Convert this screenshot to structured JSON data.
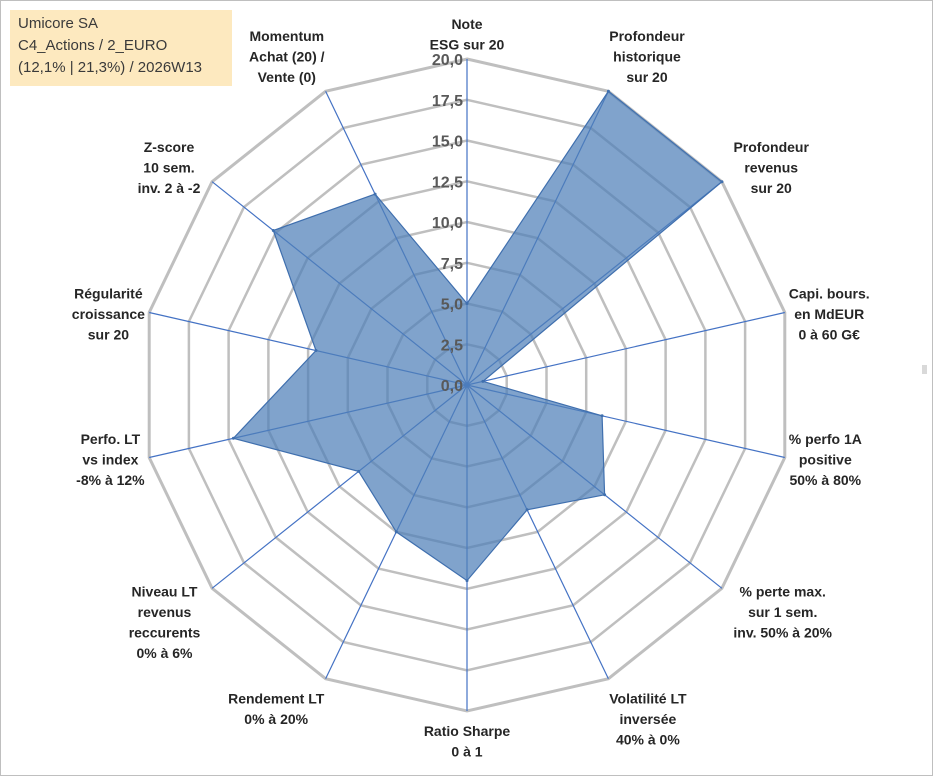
{
  "info_box": {
    "line1": "Umicore SA",
    "line2": "C4_Actions / 2_EURO",
    "line3": "(12,1% | 21,3%) / 2026W13"
  },
  "chart_data": {
    "type": "radar",
    "title": "",
    "rmin": 0,
    "rmax": 20,
    "tick_step": 2.5,
    "tick_labels": [
      "0,0",
      "2,5",
      "5,0",
      "7,5",
      "10,0",
      "12,5",
      "15,0",
      "17,5",
      "20,0"
    ],
    "axes": [
      [
        "Note",
        "ESG sur 20"
      ],
      [
        "Profondeur",
        "historique",
        "sur 20"
      ],
      [
        "Profondeur",
        "revenus",
        "sur 20"
      ],
      [
        "Capi. bours.",
        "en MdEUR",
        "0 à 60 G€"
      ],
      [
        "% perfo 1A",
        "positive",
        "50% à 80%"
      ],
      [
        "% perte max.",
        "sur 1 sem.",
        "inv. 50% à 20%"
      ],
      [
        "Volatilité LT",
        "inversée",
        "40% à 0%"
      ],
      [
        "Ratio Sharpe",
        "0 à 1"
      ],
      [
        "Rendement LT",
        "0% à 20%"
      ],
      [
        "Niveau LT",
        "revenus",
        "reccurents",
        "0% à 6%"
      ],
      [
        "Perfo. LT",
        "vs index",
        "-8% à 12%"
      ],
      [
        "Régularité",
        "croissance",
        "sur 20"
      ],
      [
        "Z-score",
        "10 sem.",
        "inv. 2 à -2"
      ],
      [
        "Momentum",
        "Achat (20) /",
        "Vente (0)"
      ]
    ],
    "series": [
      {
        "name": "Umicore SA",
        "values": [
          5.0,
          20.0,
          20.0,
          1.0,
          8.5,
          10.8,
          8.5,
          12.0,
          10.0,
          8.5,
          14.7,
          9.5,
          15.2,
          13.0
        ]
      }
    ],
    "colors": {
      "fill": "#4f7fb8",
      "fill_opacity": 0.72,
      "spoke": "#4472c4",
      "grid": "#bfbfbf",
      "series_line": "#3f6fae"
    }
  }
}
